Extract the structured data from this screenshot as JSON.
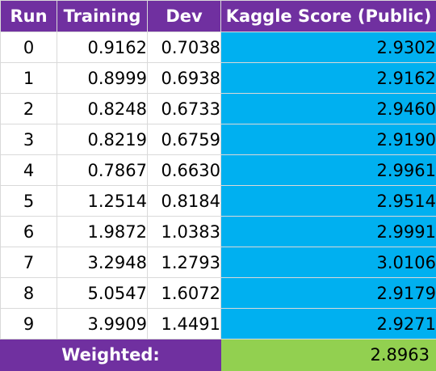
{
  "colors": {
    "header": "#7030a0",
    "kaggle": "#00b0f0",
    "footer": "#7030a0",
    "weighted": "#92d050"
  },
  "table": {
    "headers": [
      "Run",
      "Training",
      "Dev",
      "Kaggle Score (Public)"
    ],
    "rows": [
      [
        "0",
        "0.9162",
        "0.7038",
        "2.9302"
      ],
      [
        "1",
        "0.8999",
        "0.6938",
        "2.9162"
      ],
      [
        "2",
        "0.8248",
        "0.6733",
        "2.9460"
      ],
      [
        "3",
        "0.8219",
        "0.6759",
        "2.9190"
      ],
      [
        "4",
        "0.7867",
        "0.6630",
        "2.9961"
      ],
      [
        "5",
        "1.2514",
        "0.8184",
        "2.9514"
      ],
      [
        "6",
        "1.9872",
        "1.0383",
        "2.9991"
      ],
      [
        "7",
        "3.2948",
        "1.2793",
        "3.0106"
      ],
      [
        "8",
        "5.0547",
        "1.6072",
        "2.9179"
      ],
      [
        "9",
        "3.9909",
        "1.4491",
        "2.9271"
      ]
    ],
    "footer": {
      "label": "Weighted:",
      "value": "2.8963"
    }
  }
}
